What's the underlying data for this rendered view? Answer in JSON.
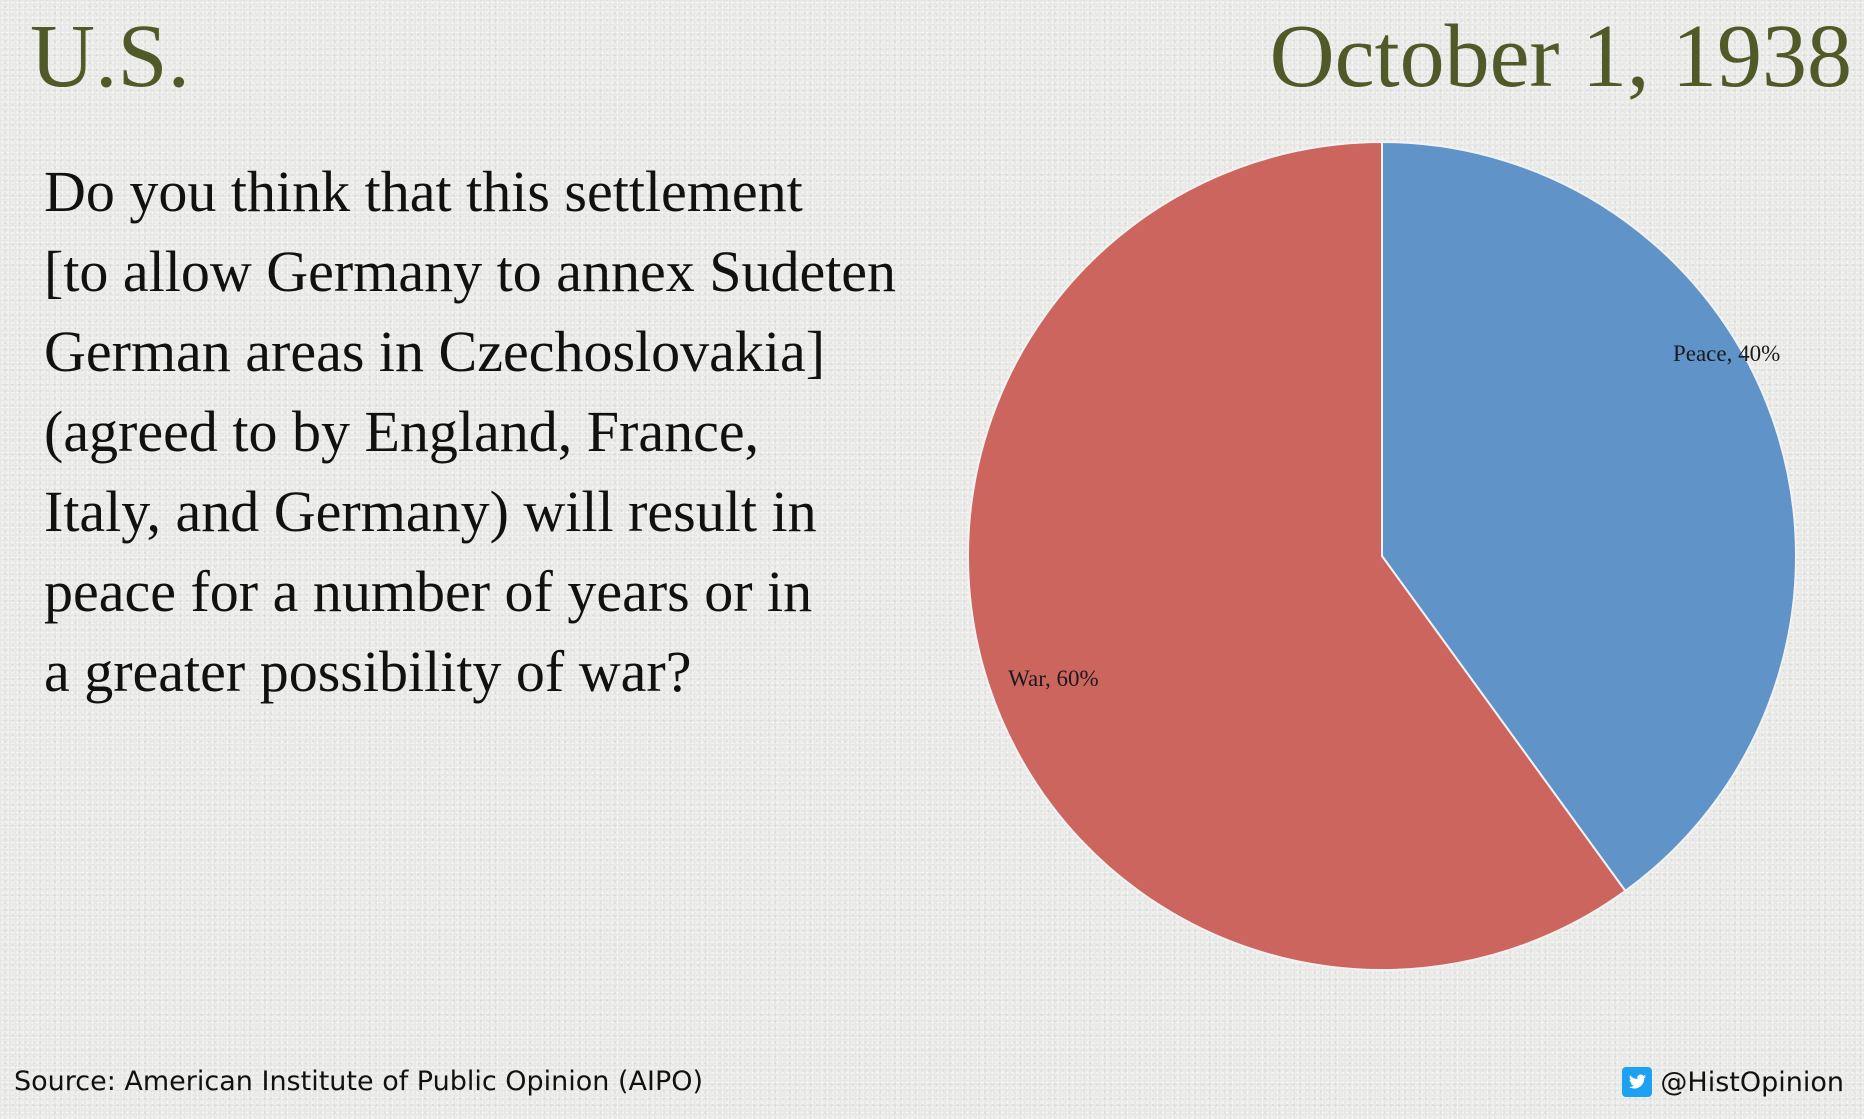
{
  "header": {
    "region": "U.S.",
    "date": "October 1, 1938"
  },
  "question": "Do you think that this settlement\n[to allow Germany to annex Sudeten\nGerman areas in Czechoslovakia]\n(agreed to by England, France,\nItaly, and Germany) will result in\npeace for a number of years or in\na greater possibility of war?",
  "footer": {
    "source": "Source: American Institute of Public Opinion (AIPO)",
    "handle": "@HistOpinion",
    "handle_icon": "twitter-bird-icon"
  },
  "colors": {
    "title": "#4f5a28",
    "peace": "#6094c9",
    "war": "#cd655f",
    "twitter": "#1da1f2"
  },
  "chart_data": {
    "type": "pie",
    "title": "",
    "slices": [
      {
        "label": "Peace",
        "value": 40,
        "display": "Peace, 40%",
        "color": "#6094c9"
      },
      {
        "label": "War",
        "value": 60,
        "display": "War, 60%",
        "color": "#cd655f"
      }
    ]
  }
}
